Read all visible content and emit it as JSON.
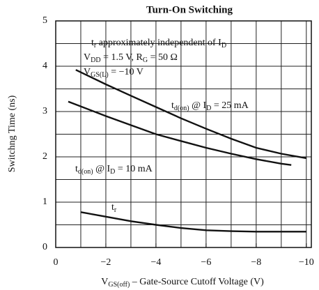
{
  "chart_data": {
    "type": "line",
    "title": "Turn-On Switching",
    "y_label": "Switchng Time (ns)",
    "x_label_parts": [
      [
        "V",
        false
      ],
      [
        "GS(off)",
        true
      ],
      [
        " – Gate-Source Cutoff Voltage (V)",
        false
      ]
    ],
    "annotations": [
      [
        [
          "t",
          false
        ],
        [
          "r",
          true
        ],
        [
          " approximately independent of I",
          false
        ],
        [
          "D",
          true
        ]
      ],
      [
        [
          "V",
          false
        ],
        [
          "DD",
          true
        ],
        [
          " = 1.5 V, R",
          false
        ],
        [
          "G",
          true
        ],
        [
          " = 50 Ω",
          false
        ]
      ],
      [
        [
          "V",
          false
        ],
        [
          "GS(L)",
          true
        ],
        [
          " = −10 V",
          false
        ]
      ]
    ],
    "series": [
      {
        "name_parts": [
          [
            "t",
            false
          ],
          [
            "d(on)",
            true
          ],
          [
            " @ I",
            false
          ],
          [
            "D",
            true
          ],
          [
            " = 25 mA",
            false
          ]
        ],
        "color": "#111111",
        "x": [
          -0.8,
          -2,
          -3,
          -4,
          -5,
          -6,
          -7,
          -8,
          -9,
          -10
        ],
        "values": [
          3.92,
          3.6,
          3.35,
          3.1,
          2.85,
          2.62,
          2.4,
          2.2,
          2.07,
          1.97
        ]
      },
      {
        "name_parts": [
          [
            "t",
            false
          ],
          [
            "d(on)",
            true
          ],
          [
            " @ I",
            false
          ],
          [
            "D",
            true
          ],
          [
            " = 10 mA",
            false
          ]
        ],
        "color": "#111111",
        "x": [
          -0.5,
          -2,
          -3,
          -4,
          -5,
          -6,
          -7,
          -8,
          -9,
          -9.4
        ],
        "values": [
          3.22,
          2.9,
          2.7,
          2.5,
          2.35,
          2.2,
          2.07,
          1.95,
          1.85,
          1.82
        ]
      },
      {
        "name_parts": [
          [
            "t",
            false
          ],
          [
            "r",
            true
          ]
        ],
        "color": "#111111",
        "x": [
          -1,
          -2,
          -3,
          -4,
          -5,
          -6,
          -7,
          -8,
          -9,
          -10
        ],
        "values": [
          0.78,
          0.68,
          0.58,
          0.5,
          0.43,
          0.38,
          0.36,
          0.35,
          0.35,
          0.35
        ]
      }
    ],
    "xlim": [
      0,
      -10.2
    ],
    "xticks": [
      0,
      {
        "value": -2,
        "label": "−2"
      },
      {
        "value": -4,
        "label": "−4"
      },
      {
        "value": -6,
        "label": "−6"
      },
      {
        "value": -8,
        "label": "−8"
      },
      {
        "value": -10,
        "label": "−10"
      }
    ],
    "xgrid": [
      -1,
      -2,
      -3,
      -4,
      -5,
      -6,
      -7,
      -8,
      -9,
      -10
    ],
    "ylim": [
      0,
      5
    ],
    "yticks": [
      0,
      1,
      2,
      3,
      4,
      5
    ],
    "ygrid": [
      0.5,
      1,
      1.5,
      2,
      2.5,
      3,
      3.5,
      4,
      4.5
    ],
    "grid": true
  }
}
